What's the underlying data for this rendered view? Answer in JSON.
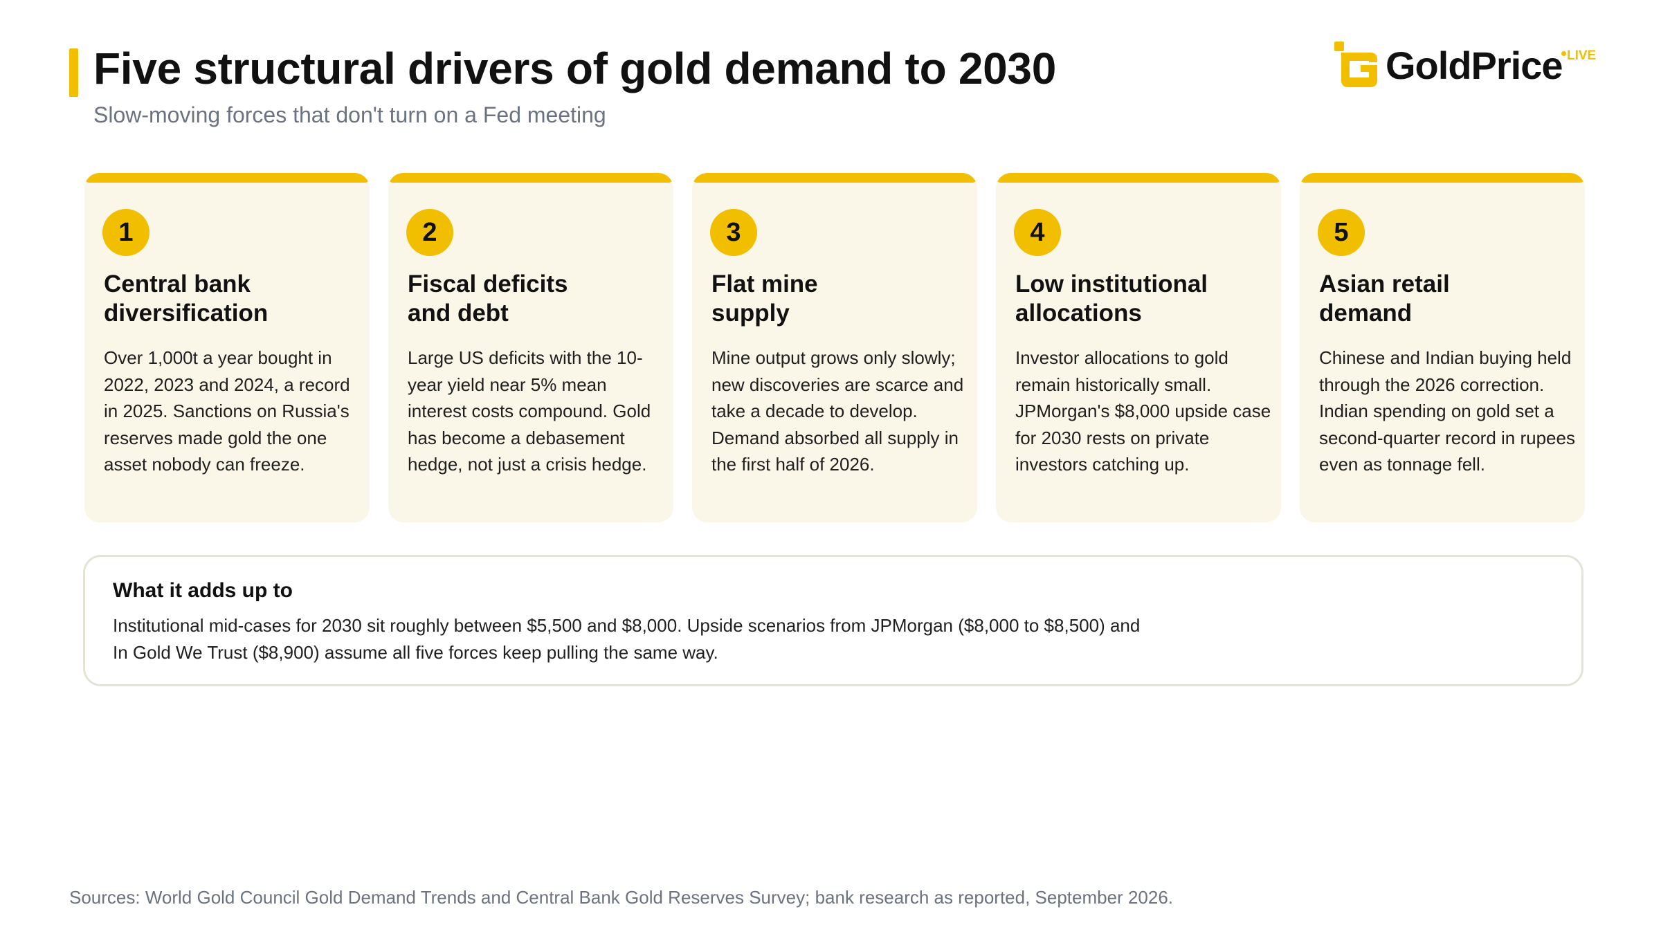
{
  "header": {
    "title": "Five structural drivers of gold demand to 2030",
    "subtitle": "Slow-moving forces that don't turn on a Fed meeting"
  },
  "logo": {
    "name": "GoldPrice",
    "badge": "LIVE",
    "accent_color": "#F2BE00"
  },
  "cards": [
    {
      "number": "1",
      "title": "Central bank\ndiversification",
      "body": "Over 1,000t a year bought in 2022, 2023 and 2024, a record in 2025. Sanctions on Russia's reserves made gold the one asset nobody can freeze."
    },
    {
      "number": "2",
      "title": "Fiscal deficits\nand debt",
      "body": "Large US deficits with the 10-year yield near 5% mean interest costs compound. Gold has become a debasement hedge, not just a crisis hedge."
    },
    {
      "number": "3",
      "title": "Flat mine\nsupply",
      "body": "Mine output grows only slowly; new discoveries are scarce and take a decade to develop. Demand absorbed all supply in the first half of 2026."
    },
    {
      "number": "4",
      "title": "Low institutional\nallocations",
      "body": "Investor allocations to gold remain historically small. JPMorgan's $8,000 upside case for 2030 rests on private investors catching up."
    },
    {
      "number": "5",
      "title": "Asian retail\ndemand",
      "body": "Chinese and Indian buying held through the 2026 correction. Indian spending on gold set a second-quarter record in rupees even as tonnage fell."
    }
  ],
  "summary": {
    "title": "What it adds up to",
    "lines": [
      "Institutional mid-cases for 2030 sit roughly between $5,500 and $8,000. Upside scenarios from JPMorgan ($8,000 to $8,500) and",
      "In Gold We Trust ($8,900) assume all five forces keep pulling the same way."
    ]
  },
  "footer": {
    "sources": "Sources: World Gold Council Gold Demand Trends and Central Bank Gold Reserves Survey; bank research as reported, September 2026."
  },
  "colors": {
    "accent": "#F2BE00",
    "card_bg": "#FAF6E8",
    "title_text": "#111111",
    "muted_text": "#6b7280"
  }
}
